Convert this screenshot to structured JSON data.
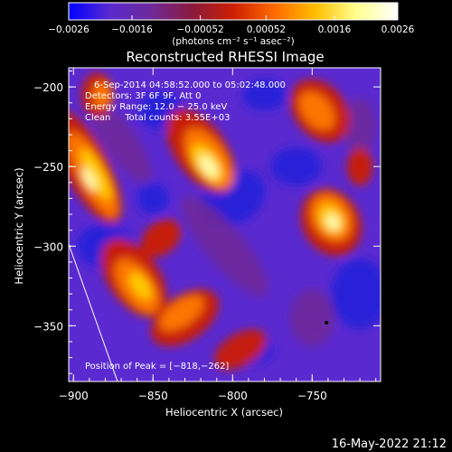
{
  "chart_data": {
    "type": "heatmap",
    "title": "Reconstructed RHESSI Image",
    "xlabel": "Heliocentric X (arcsec)",
    "ylabel": "Heliocentric Y (arcsec)",
    "xlim": [
      -903,
      -707
    ],
    "ylim": [
      -385,
      -188
    ],
    "xticks": [
      -900,
      -850,
      -800,
      -750
    ],
    "xtick_labels": [
      "−900",
      "−850",
      "−800",
      "−750"
    ],
    "yticks": [
      -200,
      -250,
      -300,
      -350
    ],
    "ytick_labels": [
      "−200",
      "−250",
      "−300",
      "−350"
    ],
    "colorbar": {
      "range": [
        -0.0026,
        0.0026
      ],
      "ticks": [
        -0.0026,
        -0.0016,
        -0.00052,
        0.00052,
        0.0016,
        0.0026
      ],
      "tick_labels": [
        "−0.0026",
        "−0.0016",
        "−0.00052",
        "0.00052",
        "0.0016",
        "0.0026"
      ],
      "units": "(photons cm⁻² s⁻¹ asec⁻²)",
      "colors": [
        "#0000ff",
        "#5a2ad0",
        "#6e2a9a",
        "#8a1a3c",
        "#cc1f00",
        "#ff6a00",
        "#ffbe00",
        "#ffff90",
        "#ffffff"
      ]
    },
    "annotations": [
      "6-Sep-2014 04:58:52.000 to 05:02:48.000",
      "Detectors: 3F 6F 9F, Att 0",
      "Energy Range: 12.0 − 25.0 keV",
      "Clean     Total counts: 3.55E+03"
    ],
    "peak_label": "Position of Peak = [−818,−262]",
    "peak": [
      -818,
      -262
    ],
    "bright_sources": [
      {
        "x": -815,
        "y": -245,
        "level": 1.0
      },
      {
        "x": -738,
        "y": -283,
        "level": 0.85
      },
      {
        "x": -890,
        "y": -255,
        "level": 0.8
      },
      {
        "x": -840,
        "y": -340,
        "level": 0.75
      },
      {
        "x": -745,
        "y": -215,
        "level": 0.55
      },
      {
        "x": -880,
        "y": -205,
        "level": 0.5
      }
    ],
    "grid": false
  },
  "footer_timestamp": "16-May-2022 21:12"
}
